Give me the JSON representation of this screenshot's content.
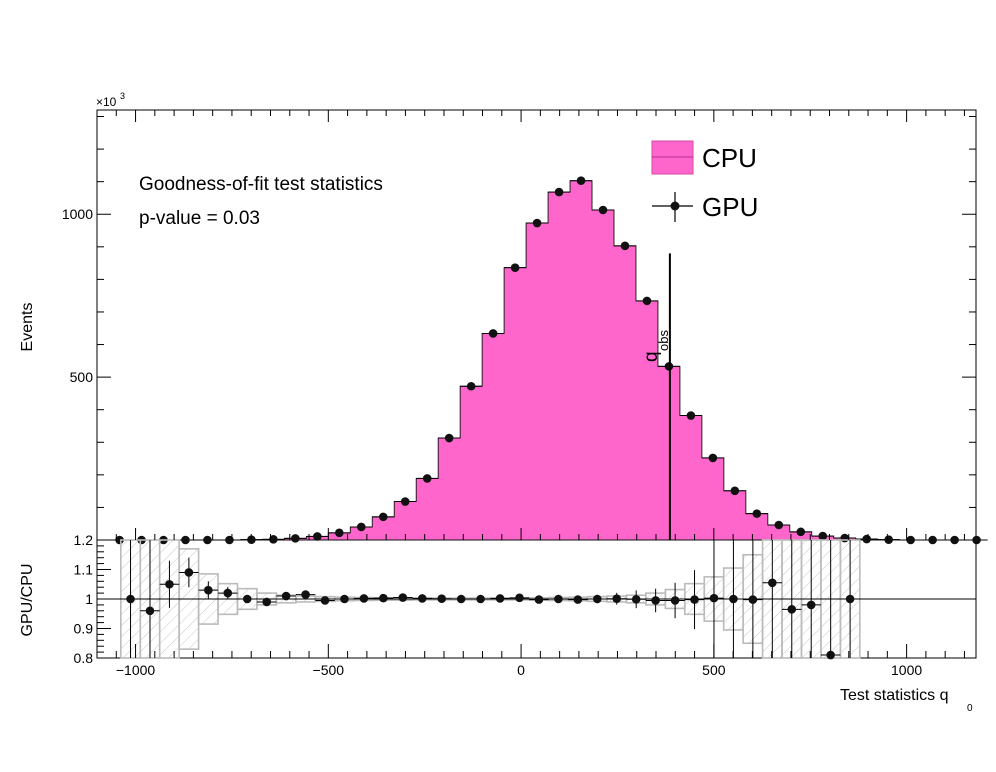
{
  "chart_data": [
    {
      "type": "bar",
      "panel": "main",
      "xlabel": "Test statistics q",
      "xlabel_sub": "0",
      "ylabel": "Events",
      "exponent_label": "×10",
      "exponent_power": "3",
      "xlim": [
        -1100,
        1180
      ],
      "ylim": [
        0,
        1320
      ],
      "x_ticks": [
        -1000,
        -500,
        0,
        500,
        1000
      ],
      "x_tick_labels": [
        "−1000",
        "−500",
        "0",
        "500",
        "1000"
      ],
      "y_ticks": [
        500,
        1000
      ],
      "y_tick_labels": [
        "500",
        "1000"
      ],
      "bin_width": 57,
      "bin_edges_start": -1070,
      "annotations": [
        "Goodness-of-fit test statistics",
        "p-value = 0.03"
      ],
      "observed_line": {
        "x": 386,
        "y_top": 880,
        "label": "q",
        "label_sub": "obs"
      },
      "series": [
        {
          "name": "CPU",
          "style": "filled-histogram",
          "color": "#ff66cc",
          "values": [
            0,
            0,
            0,
            0,
            0,
            0,
            1,
            2,
            5,
            11,
            22,
            40,
            71,
            118,
            189,
            313,
            472,
            634,
            836,
            973,
            1068,
            1103,
            1013,
            903,
            734,
            533,
            382,
            252,
            151,
            81,
            46,
            25,
            12,
            6,
            3,
            1,
            0,
            0,
            0,
            0
          ]
        },
        {
          "name": "GPU",
          "style": "points-with-errors",
          "color": "#000000",
          "values": [
            0,
            0,
            0,
            0,
            0,
            0,
            1,
            2,
            5,
            11,
            22,
            40,
            71,
            118,
            189,
            313,
            472,
            634,
            836,
            973,
            1068,
            1103,
            1013,
            903,
            734,
            533,
            382,
            252,
            151,
            81,
            46,
            25,
            12,
            6,
            3,
            1,
            0,
            0,
            0,
            0
          ]
        }
      ],
      "legend": "top-right"
    },
    {
      "type": "scatter",
      "panel": "ratio",
      "ylabel": "GPU/CPU",
      "ylim": [
        0.8,
        1.2
      ],
      "y_ticks": [
        0.8,
        0.9,
        1.0,
        1.1,
        1.2
      ],
      "y_tick_labels": [
        "0.8",
        "0.9",
        "1",
        "1.1",
        "1.2"
      ],
      "reference_line": 1.0,
      "ratio_values": [
        1.0,
        0.96,
        1.05,
        1.09,
        1.03,
        1.02,
        1.0,
        0.99,
        1.01,
        1.015,
        0.995,
        1.0,
        1.002,
        1.003,
        1.005,
        1.002,
        1.001,
        1.0,
        1.0,
        1.002,
        1.004,
        0.998,
        1.0,
        0.998,
        1.0,
        1.001,
        0.999,
        0.995,
        0.995,
        0.998,
        1.003,
        1.0,
        0.998,
        1.055,
        0.965,
        0.98,
        0.81,
        1.0
      ],
      "ratio_errors": [
        0.5,
        0.4,
        0.08,
        0.05,
        0.03,
        0.02,
        0.013,
        0.008,
        0.006,
        0.005,
        0.004,
        0.003,
        0.003,
        0.003,
        0.003,
        0.003,
        0.003,
        0.003,
        0.003,
        0.003,
        0.004,
        0.005,
        0.006,
        0.01,
        0.014,
        0.02,
        0.03,
        0.04,
        0.06,
        0.1,
        0.2,
        0.3,
        0.5,
        0.5,
        0.5,
        0.5,
        0.5,
        0.5
      ],
      "band_halfwidth": [
        0.5,
        0.5,
        0.5,
        0.17,
        0.085,
        0.052,
        0.035,
        0.02,
        0.013,
        0.01,
        0.008,
        0.006,
        0.005,
        0.004,
        0.004,
        0.003,
        0.003,
        0.003,
        0.003,
        0.003,
        0.003,
        0.004,
        0.005,
        0.006,
        0.008,
        0.01,
        0.013,
        0.02,
        0.032,
        0.052,
        0.075,
        0.105,
        0.15,
        0.5,
        0.5,
        0.5,
        0.5,
        0.5
      ],
      "ratio_first_center": -1013
    }
  ]
}
